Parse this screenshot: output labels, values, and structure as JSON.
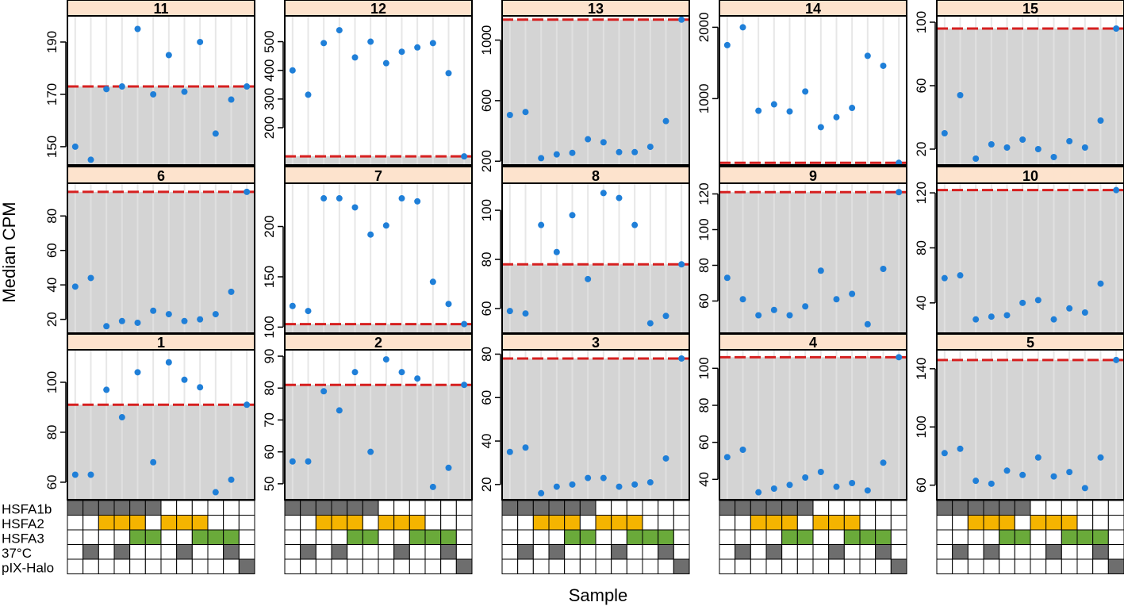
{
  "figure": {
    "ylabel": "Median CPM",
    "xlabel": "Sample",
    "row_labels": [
      "HSFA1b",
      "HSFA2",
      "HSFA3",
      "37°C",
      "pIX-Halo"
    ]
  },
  "design_matrix": {
    "columns": 12,
    "rows": [
      {
        "name": "HSFA1b",
        "color": "#6e6e6e",
        "filled": [
          1,
          1,
          1,
          1,
          1,
          1,
          0,
          0,
          0,
          0,
          0,
          0
        ]
      },
      {
        "name": "HSFA2",
        "color": "#f5b400",
        "filled": [
          0,
          0,
          1,
          1,
          1,
          0,
          1,
          1,
          1,
          0,
          0,
          0
        ]
      },
      {
        "name": "HSFA3",
        "color": "#6aaa3a",
        "filled": [
          0,
          0,
          0,
          0,
          1,
          1,
          0,
          0,
          1,
          1,
          1,
          0
        ]
      },
      {
        "name": "37°C",
        "color": "#6e6e6e",
        "filled": [
          0,
          1,
          0,
          1,
          0,
          0,
          0,
          1,
          0,
          0,
          1,
          0
        ]
      },
      {
        "name": "pIX-Halo",
        "color": "#6e6e6e",
        "filled": [
          0,
          0,
          0,
          0,
          0,
          0,
          0,
          0,
          0,
          0,
          0,
          1
        ]
      }
    ]
  },
  "colors": {
    "header_fill": "#fde3cd",
    "panel_bg": "#ffffff",
    "shade_fill": "#d4d4d4",
    "threshold_line": "#d62020",
    "point": "#1f7fd8",
    "vgrid": "#e3e3e3"
  },
  "chart_data": [
    {
      "type": "scatter",
      "title": "11",
      "ylim": [
        143,
        200
      ],
      "yticks": [
        150,
        170,
        190
      ],
      "threshold": 173,
      "values": [
        150,
        145,
        172,
        173,
        195,
        170,
        185,
        171,
        190,
        155,
        168,
        173
      ]
    },
    {
      "type": "scatter",
      "title": "12",
      "ylim": [
        70,
        590
      ],
      "yticks": [
        200,
        300,
        400,
        500
      ],
      "threshold": 100,
      "values": [
        400,
        315,
        495,
        540,
        445,
        500,
        425,
        465,
        480,
        495,
        390,
        100
      ]
    },
    {
      "type": "scatter",
      "title": "13",
      "ylim": [
        175,
        1160
      ],
      "yticks": [
        200,
        600,
        1000
      ],
      "threshold": 1135,
      "values": [
        505,
        525,
        220,
        245,
        255,
        345,
        325,
        260,
        260,
        295,
        465,
        1135
      ]
    },
    {
      "type": "scatter",
      "title": "14",
      "ylim": [
        70,
        2160
      ],
      "yticks": [
        1000,
        2000
      ],
      "threshold": 100,
      "values": [
        1750,
        2000,
        830,
        920,
        820,
        1100,
        600,
        740,
        870,
        1600,
        1460,
        100
      ]
    },
    {
      "type": "scatter",
      "title": "15",
      "ylim": [
        10,
        104
      ],
      "yticks": [
        20,
        60,
        100
      ],
      "threshold": 96,
      "values": [
        30,
        54,
        14,
        23,
        21,
        26,
        20,
        15,
        25,
        21,
        38,
        96
      ]
    },
    {
      "type": "scatter",
      "title": "6",
      "ylim": [
        12,
        99
      ],
      "yticks": [
        20,
        40,
        60,
        80
      ],
      "threshold": 94,
      "values": [
        39,
        44,
        16,
        19,
        18,
        25,
        23,
        19,
        20,
        23,
        36,
        94
      ]
    },
    {
      "type": "scatter",
      "title": "7",
      "ylim": [
        94,
        243
      ],
      "yticks": [
        100,
        150,
        200
      ],
      "threshold": 103,
      "values": [
        121,
        116,
        228,
        228,
        219,
        192,
        201,
        228,
        225,
        145,
        123,
        103
      ]
    },
    {
      "type": "scatter",
      "title": "8",
      "ylim": [
        50,
        111
      ],
      "yticks": [
        60,
        80,
        100
      ],
      "threshold": 78,
      "values": [
        59,
        58,
        94,
        83,
        98,
        72,
        107,
        105,
        94,
        54,
        57,
        78
      ]
    },
    {
      "type": "scatter",
      "title": "9",
      "ylim": [
        42,
        126
      ],
      "yticks": [
        60,
        80,
        100,
        120
      ],
      "threshold": 121,
      "values": [
        73,
        61,
        52,
        55,
        52,
        57,
        77,
        61,
        64,
        47,
        78,
        121
      ]
    },
    {
      "type": "scatter",
      "title": "10",
      "ylim": [
        18,
        127
      ],
      "yticks": [
        40,
        80,
        120
      ],
      "threshold": 122,
      "values": [
        58,
        60,
        28,
        30,
        31,
        40,
        42,
        28,
        36,
        33,
        54,
        122
      ]
    },
    {
      "type": "scatter",
      "title": "1",
      "ylim": [
        53,
        113
      ],
      "yticks": [
        60,
        80,
        100
      ],
      "threshold": 91,
      "values": [
        63,
        63,
        97,
        86,
        104,
        68,
        108,
        101,
        98,
        56,
        61,
        91
      ]
    },
    {
      "type": "scatter",
      "title": "2",
      "ylim": [
        45,
        92
      ],
      "yticks": [
        50,
        60,
        70,
        80,
        90
      ],
      "threshold": 81,
      "values": [
        57,
        57,
        79,
        73,
        85,
        60,
        89,
        85,
        83,
        49,
        55,
        81
      ]
    },
    {
      "type": "scatter",
      "title": "3",
      "ylim": [
        13,
        82
      ],
      "yticks": [
        20,
        40,
        60,
        80
      ],
      "threshold": 78,
      "values": [
        35,
        37,
        16,
        19,
        20,
        23,
        23,
        19,
        20,
        21,
        32,
        78
      ]
    },
    {
      "type": "scatter",
      "title": "4",
      "ylim": [
        29,
        110
      ],
      "yticks": [
        40,
        60,
        80,
        100
      ],
      "threshold": 106,
      "values": [
        52,
        56,
        33,
        35,
        37,
        41,
        44,
        36,
        38,
        34,
        49,
        106
      ]
    },
    {
      "type": "scatter",
      "title": "5",
      "ylim": [
        50,
        153
      ],
      "yticks": [
        60,
        100,
        140
      ],
      "threshold": 146,
      "values": [
        82,
        85,
        63,
        61,
        70,
        67,
        79,
        66,
        69,
        58,
        79,
        146
      ]
    }
  ]
}
